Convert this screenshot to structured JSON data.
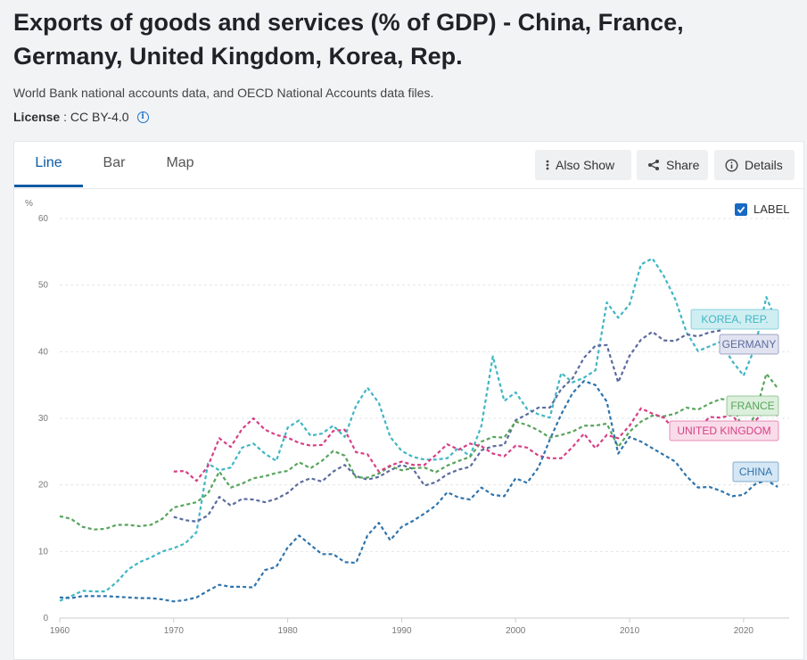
{
  "header": {
    "title": "Exports of goods and services (% of GDP) - China, France, Germany, United Kingdom, Korea, Rep.",
    "source": "World Bank national accounts data, and OECD National Accounts data files.",
    "license_label": "License",
    "license_value": ": CC BY-4.0"
  },
  "tabs": [
    {
      "label": "Line",
      "active": true
    },
    {
      "label": "Bar",
      "active": false
    },
    {
      "label": "Map",
      "active": false
    }
  ],
  "toolbar": {
    "also_show": "Also Show",
    "share": "Share",
    "details": "Details",
    "label_toggle": "LABEL",
    "label_checked": true
  },
  "chart_data": {
    "type": "line",
    "ylabel": "%",
    "xlim": [
      1960,
      2024
    ],
    "ylim": [
      0,
      60
    ],
    "yticks": [
      0,
      10,
      20,
      30,
      40,
      50,
      60
    ],
    "xticks": [
      1960,
      1970,
      1980,
      1990,
      2000,
      2010,
      2020
    ],
    "grid": true,
    "series": [
      {
        "name": "KOREA, REP.",
        "color": "#3fb6c4",
        "label_bg": "#cfeef2",
        "start": 1960,
        "values": [
          2.6,
          3.3,
          4.1,
          4.0,
          4.0,
          5.4,
          7.3,
          8.4,
          9.1,
          10.0,
          10.5,
          11.2,
          12.9,
          23.2,
          22.2,
          22.6,
          25.6,
          26.2,
          24.7,
          23.6,
          28.6,
          29.7,
          27.4,
          27.7,
          28.9,
          27.2,
          31.9,
          34.6,
          32.3,
          27.2,
          25.1,
          24.2,
          23.8,
          23.8,
          24.0,
          25.6,
          24.3,
          28.9,
          39.3,
          32.6,
          33.9,
          31.4,
          30.6,
          30.1,
          36.8,
          35.4,
          36.1,
          37.2,
          47.4,
          45.1,
          47.1,
          53.1,
          54.0,
          51.4,
          47.9,
          42.9,
          40.1,
          40.8,
          41.5,
          38.6,
          36.4,
          40.7,
          48.2,
          44.0
        ]
      },
      {
        "name": "GERMANY",
        "color": "#5b6b9e",
        "label_bg": "#e1e3f0",
        "start": 1970,
        "values": [
          15.2,
          14.7,
          14.5,
          15.4,
          18.2,
          16.9,
          17.9,
          17.8,
          17.4,
          17.9,
          18.8,
          20.3,
          21.0,
          20.5,
          22.0,
          23.0,
          21.3,
          20.8,
          21.2,
          22.2,
          23.0,
          22.4,
          19.9,
          20.4,
          21.6,
          22.3,
          22.7,
          25.2,
          25.8,
          26.0,
          29.7,
          30.6,
          31.6,
          31.6,
          34.4,
          36.0,
          39.1,
          40.9,
          41.0,
          35.4,
          39.4,
          41.8,
          43.0,
          41.7,
          41.6,
          42.6,
          42.3,
          42.9,
          43.2
        ]
      },
      {
        "name": "FRANCE",
        "color": "#58a45c",
        "label_bg": "#dcefdc",
        "start": 1960,
        "values": [
          15.3,
          14.9,
          13.7,
          13.3,
          13.4,
          14.0,
          14.0,
          13.8,
          14.0,
          14.9,
          16.6,
          17.0,
          17.4,
          18.7,
          22.0,
          19.6,
          20.2,
          21.0,
          21.3,
          21.8,
          22.1,
          23.4,
          22.5,
          23.6,
          25.1,
          24.4,
          21.1,
          21.1,
          21.7,
          22.8,
          22.2,
          22.5,
          22.6,
          21.9,
          22.9,
          23.6,
          24.2,
          26.5,
          27.2,
          27.1,
          29.5,
          29.0,
          28.2,
          27.1,
          27.5,
          28.0,
          28.9,
          28.9,
          29.2,
          25.7,
          28.0,
          29.5,
          30.4,
          30.3,
          30.7,
          31.6,
          31.3,
          32.2,
          32.9,
          32.7,
          27.7,
          30.4,
          36.7,
          34.5
        ]
      },
      {
        "name": "UNITED KINGDOM",
        "color": "#d63f86",
        "label_bg": "#f9dce9",
        "start": 1970,
        "values": [
          22.0,
          22.1,
          20.6,
          22.8,
          27.0,
          25.7,
          28.4,
          30.0,
          28.3,
          27.5,
          27.1,
          26.3,
          25.9,
          26.0,
          28.1,
          28.3,
          24.9,
          24.6,
          22.0,
          22.9,
          23.5,
          23.0,
          23.0,
          24.5,
          26.1,
          25.3,
          26.2,
          25.8,
          24.7,
          24.3,
          25.9,
          25.6,
          24.4,
          24.0,
          24.0,
          25.7,
          27.7,
          25.5,
          27.5,
          27.0,
          28.9,
          31.5,
          30.7,
          30.1,
          28.1,
          27.6,
          28.3,
          30.2,
          30.1,
          30.5,
          28.3,
          29.6,
          31.3,
          30.4
        ]
      },
      {
        "name": "CHINA",
        "color": "#2f74ac",
        "label_bg": "#d5e6f4",
        "start": 1960,
        "values": [
          3.1,
          3.0,
          3.3,
          3.3,
          3.3,
          3.2,
          3.1,
          3.0,
          3.0,
          2.8,
          2.5,
          2.7,
          3.1,
          4.1,
          5.0,
          4.7,
          4.7,
          4.6,
          7.2,
          7.7,
          10.6,
          12.4,
          11.0,
          9.6,
          9.6,
          8.4,
          8.3,
          12.4,
          14.3,
          11.7,
          13.7,
          14.6,
          15.7,
          16.9,
          18.9,
          18.1,
          17.8,
          19.6,
          18.5,
          18.3,
          21.0,
          20.3,
          22.6,
          26.8,
          30.6,
          33.8,
          35.6,
          35.0,
          32.5,
          24.7,
          27.2,
          26.5,
          25.5,
          24.5,
          23.5,
          21.3,
          19.6,
          19.7,
          19.1,
          18.3,
          18.5,
          20.1,
          20.7,
          19.7
        ]
      }
    ]
  }
}
